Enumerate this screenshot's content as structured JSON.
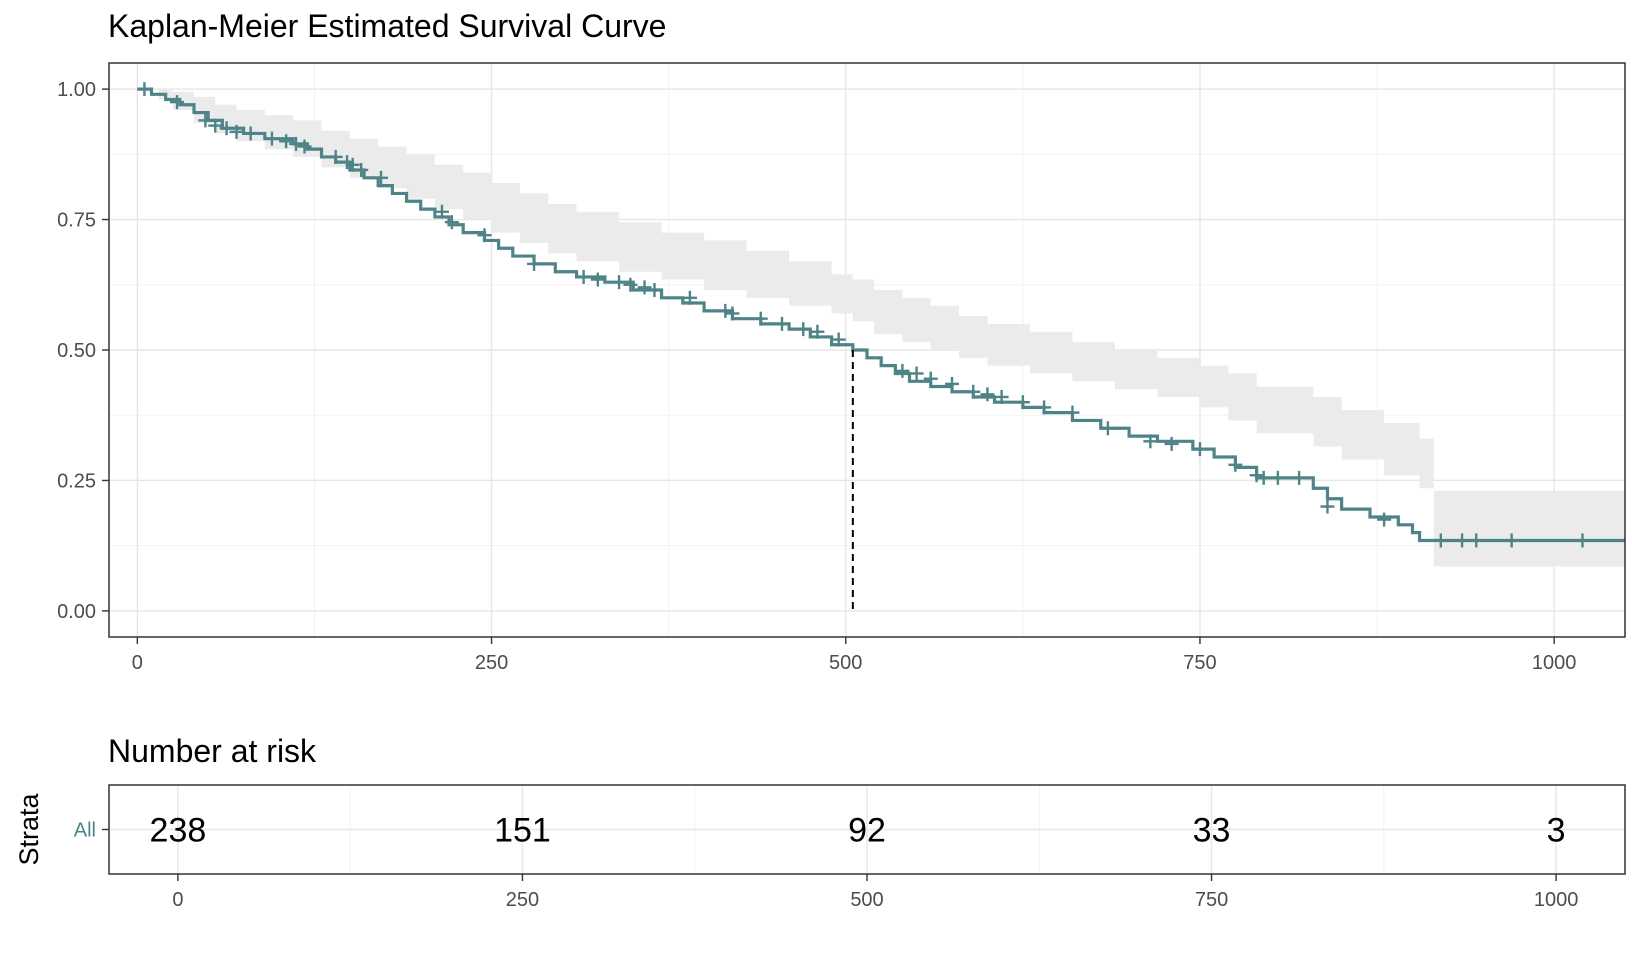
{
  "chart_data": [
    {
      "type": "line",
      "title": "Kaplan-Meier Estimated Survival Curve",
      "xlabel": "",
      "ylabel": "",
      "xlim": [
        -20,
        1050
      ],
      "ylim": [
        -0.05,
        1.05
      ],
      "x_ticks": [
        0,
        250,
        500,
        750,
        1000
      ],
      "x_tick_labels": [
        "0",
        "250",
        "500",
        "750",
        "1000"
      ],
      "y_ticks": [
        0,
        0.25,
        0.5,
        0.75,
        1.0
      ],
      "y_tick_labels": [
        "0.00",
        "0.25",
        "0.50",
        "0.75",
        "1.00"
      ],
      "grid": true,
      "legend": "none",
      "color": "#4e8488",
      "band_color": "#ebebeb",
      "median_line": {
        "x": 505,
        "y": 0.5
      },
      "series": [
        {
          "name": "All",
          "step": [
            [
              0,
              1.0
            ],
            [
              10,
              0.99
            ],
            [
              20,
              0.98
            ],
            [
              30,
              0.97
            ],
            [
              40,
              0.955
            ],
            [
              50,
              0.94
            ],
            [
              60,
              0.925
            ],
            [
              75,
              0.915
            ],
            [
              90,
              0.905
            ],
            [
              110,
              0.895
            ],
            [
              120,
              0.885
            ],
            [
              130,
              0.87
            ],
            [
              140,
              0.86
            ],
            [
              150,
              0.845
            ],
            [
              160,
              0.83
            ],
            [
              170,
              0.815
            ],
            [
              180,
              0.8
            ],
            [
              190,
              0.785
            ],
            [
              200,
              0.77
            ],
            [
              210,
              0.755
            ],
            [
              220,
              0.74
            ],
            [
              230,
              0.725
            ],
            [
              245,
              0.71
            ],
            [
              255,
              0.695
            ],
            [
              265,
              0.68
            ],
            [
              280,
              0.665
            ],
            [
              295,
              0.65
            ],
            [
              310,
              0.64
            ],
            [
              330,
              0.63
            ],
            [
              350,
              0.615
            ],
            [
              370,
              0.6
            ],
            [
              385,
              0.59
            ],
            [
              400,
              0.575
            ],
            [
              420,
              0.56
            ],
            [
              440,
              0.55
            ],
            [
              460,
              0.54
            ],
            [
              475,
              0.525
            ],
            [
              490,
              0.51
            ],
            [
              505,
              0.5
            ],
            [
              515,
              0.485
            ],
            [
              525,
              0.47
            ],
            [
              535,
              0.455
            ],
            [
              545,
              0.44
            ],
            [
              560,
              0.43
            ],
            [
              575,
              0.42
            ],
            [
              590,
              0.41
            ],
            [
              605,
              0.4
            ],
            [
              625,
              0.39
            ],
            [
              640,
              0.38
            ],
            [
              660,
              0.365
            ],
            [
              680,
              0.35
            ],
            [
              700,
              0.335
            ],
            [
              720,
              0.325
            ],
            [
              745,
              0.31
            ],
            [
              760,
              0.295
            ],
            [
              775,
              0.275
            ],
            [
              790,
              0.255
            ],
            [
              830,
              0.235
            ],
            [
              840,
              0.215
            ],
            [
              850,
              0.195
            ],
            [
              870,
              0.18
            ],
            [
              890,
              0.165
            ],
            [
              900,
              0.15
            ],
            [
              905,
              0.135
            ],
            [
              1050,
              0.135
            ]
          ],
          "ci_upper": [
            [
              0,
              1.0
            ],
            [
              15,
              1.0
            ],
            [
              25,
              0.995
            ],
            [
              40,
              0.985
            ],
            [
              55,
              0.97
            ],
            [
              70,
              0.96
            ],
            [
              90,
              0.95
            ],
            [
              110,
              0.94
            ],
            [
              130,
              0.92
            ],
            [
              150,
              0.905
            ],
            [
              170,
              0.89
            ],
            [
              190,
              0.875
            ],
            [
              210,
              0.855
            ],
            [
              230,
              0.84
            ],
            [
              250,
              0.82
            ],
            [
              270,
              0.8
            ],
            [
              290,
              0.78
            ],
            [
              310,
              0.765
            ],
            [
              340,
              0.745
            ],
            [
              370,
              0.725
            ],
            [
              400,
              0.71
            ],
            [
              430,
              0.69
            ],
            [
              460,
              0.67
            ],
            [
              490,
              0.645
            ],
            [
              505,
              0.635
            ],
            [
              520,
              0.615
            ],
            [
              540,
              0.6
            ],
            [
              560,
              0.585
            ],
            [
              580,
              0.565
            ],
            [
              600,
              0.55
            ],
            [
              630,
              0.535
            ],
            [
              660,
              0.515
            ],
            [
              690,
              0.5
            ],
            [
              720,
              0.485
            ],
            [
              750,
              0.47
            ],
            [
              770,
              0.455
            ],
            [
              790,
              0.43
            ],
            [
              830,
              0.41
            ],
            [
              850,
              0.385
            ],
            [
              880,
              0.36
            ],
            [
              905,
              0.33
            ],
            [
              915,
              0.23
            ],
            [
              1050,
              0.23
            ]
          ],
          "ci_lower": [
            [
              0,
              1.0
            ],
            [
              15,
              0.98
            ],
            [
              25,
              0.96
            ],
            [
              40,
              0.935
            ],
            [
              55,
              0.915
            ],
            [
              70,
              0.9
            ],
            [
              90,
              0.885
            ],
            [
              110,
              0.87
            ],
            [
              130,
              0.85
            ],
            [
              150,
              0.83
            ],
            [
              170,
              0.81
            ],
            [
              190,
              0.79
            ],
            [
              210,
              0.77
            ],
            [
              230,
              0.75
            ],
            [
              250,
              0.725
            ],
            [
              270,
              0.705
            ],
            [
              290,
              0.685
            ],
            [
              310,
              0.67
            ],
            [
              340,
              0.65
            ],
            [
              370,
              0.635
            ],
            [
              400,
              0.615
            ],
            [
              430,
              0.6
            ],
            [
              460,
              0.585
            ],
            [
              490,
              0.57
            ],
            [
              505,
              0.555
            ],
            [
              520,
              0.53
            ],
            [
              540,
              0.515
            ],
            [
              560,
              0.5
            ],
            [
              580,
              0.485
            ],
            [
              600,
              0.47
            ],
            [
              630,
              0.455
            ],
            [
              660,
              0.44
            ],
            [
              690,
              0.425
            ],
            [
              720,
              0.41
            ],
            [
              750,
              0.39
            ],
            [
              770,
              0.365
            ],
            [
              790,
              0.34
            ],
            [
              830,
              0.315
            ],
            [
              850,
              0.29
            ],
            [
              880,
              0.26
            ],
            [
              905,
              0.235
            ],
            [
              915,
              0.085
            ],
            [
              1050,
              0.085
            ]
          ],
          "censored": [
            [
              5,
              1.0
            ],
            [
              28,
              0.975
            ],
            [
              48,
              0.94
            ],
            [
              55,
              0.93
            ],
            [
              63,
              0.925
            ],
            [
              70,
              0.918
            ],
            [
              80,
              0.915
            ],
            [
              95,
              0.905
            ],
            [
              105,
              0.9
            ],
            [
              112,
              0.895
            ],
            [
              118,
              0.89
            ],
            [
              140,
              0.87
            ],
            [
              148,
              0.86
            ],
            [
              152,
              0.855
            ],
            [
              158,
              0.845
            ],
            [
              172,
              0.83
            ],
            [
              215,
              0.765
            ],
            [
              222,
              0.745
            ],
            [
              245,
              0.72
            ],
            [
              280,
              0.665
            ],
            [
              315,
              0.64
            ],
            [
              325,
              0.635
            ],
            [
              340,
              0.63
            ],
            [
              348,
              0.625
            ],
            [
              358,
              0.62
            ],
            [
              365,
              0.615
            ],
            [
              390,
              0.6
            ],
            [
              415,
              0.575
            ],
            [
              420,
              0.57
            ],
            [
              440,
              0.56
            ],
            [
              455,
              0.55
            ],
            [
              470,
              0.54
            ],
            [
              480,
              0.535
            ],
            [
              495,
              0.52
            ],
            [
              540,
              0.46
            ],
            [
              550,
              0.455
            ],
            [
              560,
              0.445
            ],
            [
              575,
              0.435
            ],
            [
              590,
              0.42
            ],
            [
              600,
              0.415
            ],
            [
              610,
              0.41
            ],
            [
              625,
              0.4
            ],
            [
              640,
              0.39
            ],
            [
              660,
              0.38
            ],
            [
              685,
              0.35
            ],
            [
              715,
              0.325
            ],
            [
              730,
              0.32
            ],
            [
              750,
              0.31
            ],
            [
              775,
              0.28
            ],
            [
              790,
              0.26
            ],
            [
              795,
              0.255
            ],
            [
              805,
              0.255
            ],
            [
              820,
              0.255
            ],
            [
              840,
              0.2
            ],
            [
              880,
              0.175
            ],
            [
              920,
              0.135
            ],
            [
              935,
              0.135
            ],
            [
              945,
              0.135
            ],
            [
              970,
              0.135
            ],
            [
              1020,
              0.135
            ]
          ]
        }
      ]
    },
    {
      "type": "table",
      "title": "Number at risk",
      "ylabel": "Strata",
      "row_labels": [
        "All"
      ],
      "x_ticks": [
        0,
        250,
        500,
        750,
        1000
      ],
      "x_tick_labels": [
        "0",
        "250",
        "500",
        "750",
        "1000"
      ],
      "xlim": [
        -50,
        1050
      ],
      "values": [
        238,
        151,
        92,
        33,
        3
      ],
      "row_label_color": "#4e8488"
    }
  ]
}
